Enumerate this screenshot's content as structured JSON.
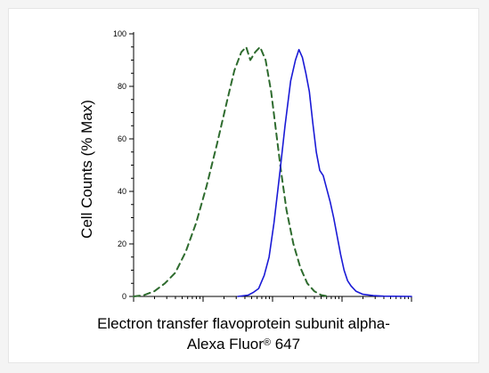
{
  "chart_data": {
    "type": "line",
    "title": "",
    "ylabel": "Cell Counts (% Max)",
    "xlabel_line1": "Electron transfer flavoprotein subunit alpha-",
    "xlabel_line2_main": "Alexa Fluor",
    "xlabel_line2_mark": "®",
    "xlabel_line2_tail": " 647",
    "x_scale": "log",
    "xlim_decades": [
      0,
      4
    ],
    "ylim": [
      0,
      100
    ],
    "yticks": [
      0,
      20,
      40,
      60,
      80,
      100
    ],
    "yticklabels": [
      "0",
      "20",
      "40",
      "60",
      "80",
      "100"
    ],
    "grid": false,
    "series": [
      {
        "style": "dashed",
        "color": "#2e6b2e",
        "points": [
          [
            0.0,
            0
          ],
          [
            0.15,
            0.5
          ],
          [
            0.3,
            2
          ],
          [
            0.45,
            5
          ],
          [
            0.6,
            9
          ],
          [
            0.75,
            17
          ],
          [
            0.9,
            28
          ],
          [
            1.05,
            42
          ],
          [
            1.2,
            58
          ],
          [
            1.35,
            75
          ],
          [
            1.45,
            86
          ],
          [
            1.55,
            93
          ],
          [
            1.62,
            95
          ],
          [
            1.68,
            90
          ],
          [
            1.75,
            93
          ],
          [
            1.82,
            95
          ],
          [
            1.9,
            90
          ],
          [
            1.98,
            78
          ],
          [
            2.05,
            63
          ],
          [
            2.12,
            48
          ],
          [
            2.2,
            33
          ],
          [
            2.3,
            20
          ],
          [
            2.4,
            11
          ],
          [
            2.5,
            5
          ],
          [
            2.6,
            2
          ],
          [
            2.7,
            0.5
          ],
          [
            2.8,
            0
          ]
        ]
      },
      {
        "style": "solid",
        "color": "#1a1ad6",
        "points": [
          [
            1.5,
            0
          ],
          [
            1.65,
            0.5
          ],
          [
            1.72,
            1.5
          ],
          [
            1.8,
            3
          ],
          [
            1.88,
            8
          ],
          [
            1.95,
            15
          ],
          [
            2.02,
            28
          ],
          [
            2.1,
            46
          ],
          [
            2.18,
            65
          ],
          [
            2.26,
            82
          ],
          [
            2.33,
            90
          ],
          [
            2.38,
            94
          ],
          [
            2.43,
            91
          ],
          [
            2.48,
            85
          ],
          [
            2.53,
            78
          ],
          [
            2.58,
            66
          ],
          [
            2.63,
            55
          ],
          [
            2.68,
            48
          ],
          [
            2.73,
            46
          ],
          [
            2.78,
            41
          ],
          [
            2.83,
            36
          ],
          [
            2.88,
            30
          ],
          [
            2.93,
            23
          ],
          [
            2.98,
            16
          ],
          [
            3.03,
            10
          ],
          [
            3.08,
            6
          ],
          [
            3.13,
            4
          ],
          [
            3.2,
            2
          ],
          [
            3.3,
            0.8
          ],
          [
            3.45,
            0.3
          ],
          [
            3.6,
            0.1
          ],
          [
            4.0,
            0
          ]
        ]
      }
    ]
  }
}
